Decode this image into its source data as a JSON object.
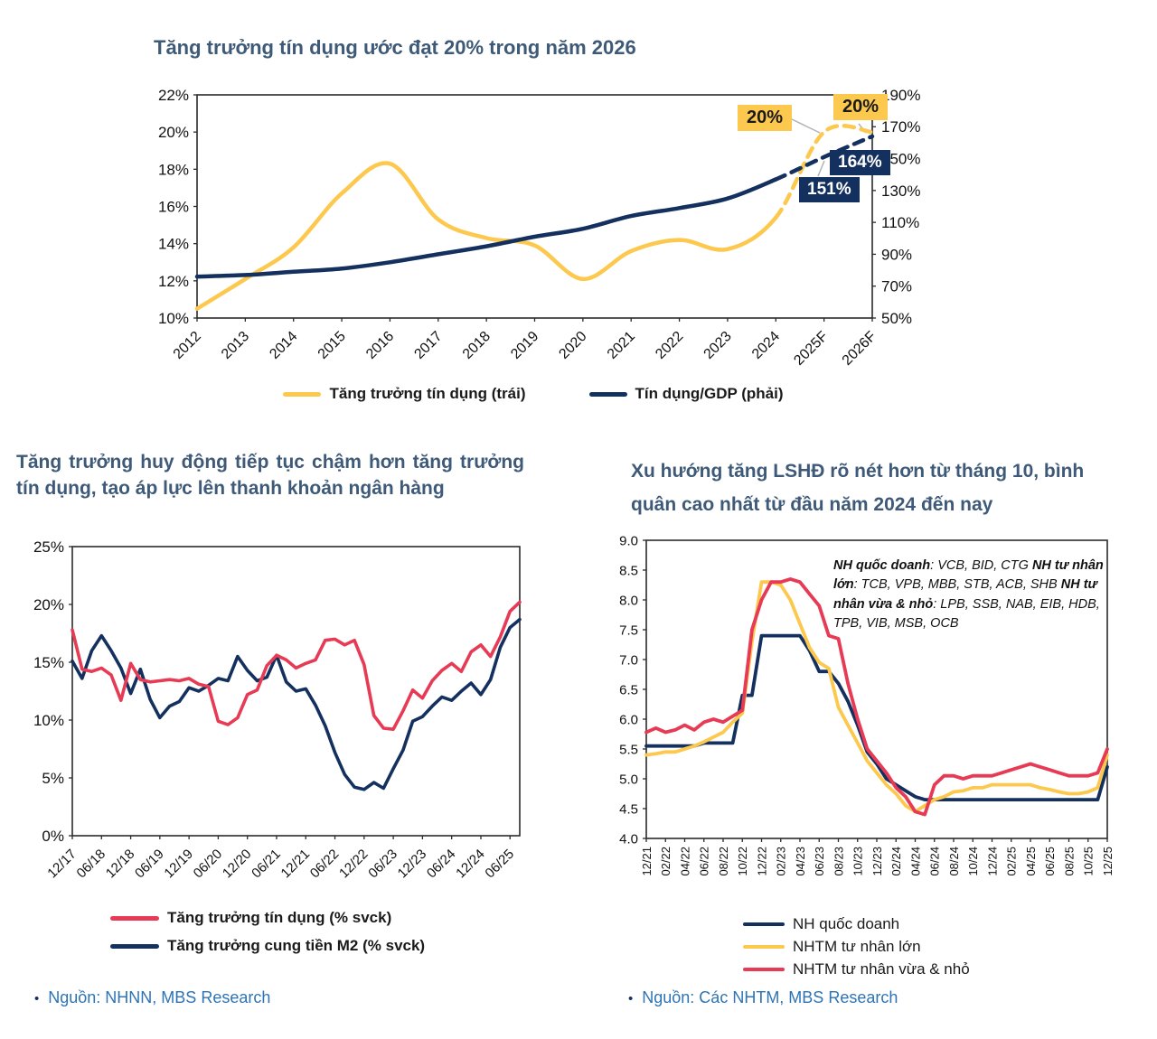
{
  "colors": {
    "navy": "#14305e",
    "yellow": "#fcc84d",
    "red": "#e73a55",
    "title_blue": "#3e5a78",
    "source_blue": "#2e74b5",
    "connector_grey": "#b3b3b3",
    "frame": "#2b2b2b"
  },
  "sources": {
    "bullet": "•",
    "left": "Nguồn: NHNN, MBS Research",
    "right": "Nguồn: Các NHTM, MBS Research"
  },
  "chart_data": [
    {
      "type": "line",
      "title": "Tăng trưởng tín dụng ước đạt 20% trong năm 2026",
      "smooth": true,
      "x_count": 15,
      "x_step": 1,
      "x_rot": 45,
      "x_labels": [
        "2012",
        "2013",
        "2014",
        "2015",
        "2016",
        "2017",
        "2018",
        "2019",
        "2020",
        "2021",
        "2022",
        "2023",
        "2024",
        "2025F",
        "2026F"
      ],
      "x_label_pos": [
        0,
        1,
        2,
        3,
        4,
        5,
        6,
        7,
        8,
        9,
        10,
        11,
        12,
        13,
        14
      ],
      "y_axis": {
        "min": 10,
        "max": 22,
        "ticks": [
          22,
          20,
          18,
          16,
          14,
          12,
          10
        ],
        "suffix": "%",
        "decimals": 0
      },
      "y2_axis": {
        "min": 50,
        "max": 190,
        "ticks": [
          190,
          170,
          150,
          130,
          110,
          90,
          70,
          50
        ],
        "suffix": "%",
        "decimals": 0
      },
      "legend_position": "bottom-center",
      "draw_order": [
        0,
        1
      ],
      "series": [
        {
          "name": "Tăng trưởng tín dụng (trái)",
          "color": "#fcc84d",
          "axis": "y",
          "width": 4.5,
          "dash_from": 12,
          "values": [
            10.5,
            12.1,
            13.8,
            16.7,
            18.3,
            15.3,
            14.3,
            13.9,
            12.1,
            13.6,
            14.2,
            13.7,
            15.4,
            20,
            20
          ]
        },
        {
          "name": "Tín dụng/GDP (phải)",
          "color": "#14305e",
          "axis": "y2",
          "width": 4.5,
          "dash_from": 12,
          "values": [
            76,
            77,
            79,
            81,
            85,
            90,
            95,
            101,
            106,
            114,
            119,
            125,
            137,
            151,
            164
          ]
        }
      ],
      "annotations": [
        {
          "text": "20%",
          "target": "Tăng trưởng tín dụng 2025F",
          "style": "yellow"
        },
        {
          "text": "20%",
          "target": "Tăng trưởng tín dụng 2026F",
          "style": "yellow"
        },
        {
          "text": "164%",
          "target": "Tín dụng/GDP 2026F",
          "style": "navy"
        },
        {
          "text": "151%",
          "target": "Tín dụng/GDP 2025F",
          "style": "navy"
        }
      ]
    },
    {
      "type": "line",
      "title": "Tăng trưởng huy động tiếp tục chậm hơn tăng trưởng tín dụng, tạo áp lực lên thanh khoản ngân hàng",
      "smooth": false,
      "x_count": 93,
      "x_step": 2,
      "x_rot": 45,
      "x_labels": [
        "12/17",
        "06/18",
        "12/18",
        "06/19",
        "12/19",
        "06/20",
        "12/20",
        "06/21",
        "12/21",
        "06/22",
        "12/22",
        "06/23",
        "12/23",
        "06/24",
        "12/24",
        "06/25"
      ],
      "x_label_pos": [
        0,
        6,
        12,
        18,
        24,
        30,
        36,
        42,
        48,
        54,
        60,
        66,
        72,
        78,
        84,
        90
      ],
      "y_axis": {
        "min": 0,
        "max": 25,
        "ticks": [
          25,
          20,
          15,
          10,
          5,
          0
        ],
        "suffix": "%",
        "decimals": 0
      },
      "legend_position": "bottom-left",
      "draw_order": [
        1,
        0
      ],
      "series": [
        {
          "name": "Tăng trưởng tín dụng (% svck)",
          "color": "#e73a55",
          "axis": "y",
          "width": 3.6,
          "dash_from": null,
          "values": [
            17.8,
            14.4,
            14.2,
            14.5,
            13.9,
            11.7,
            14.9,
            13.5,
            13.3,
            13.4,
            13.5,
            13.4,
            13.6,
            13.1,
            12.9,
            9.9,
            9.6,
            10.2,
            12.2,
            12.6,
            14.7,
            15.6,
            15.2,
            14.5,
            14.9,
            15.2,
            16.9,
            17.0,
            16.5,
            16.9,
            14.8,
            10.4,
            9.3,
            9.2,
            10.8,
            12.6,
            11.9,
            13.4,
            14.3,
            14.9,
            14.2,
            15.9,
            16.5,
            15.5,
            17.2,
            19.4,
            20.2
          ]
        },
        {
          "name": "Tăng trưởng cung tiền M2 (% svck)",
          "color": "#14305e",
          "axis": "y",
          "width": 3.6,
          "dash_from": null,
          "values": [
            15.1,
            13.6,
            16.0,
            17.3,
            16.0,
            14.5,
            12.3,
            14.4,
            11.8,
            10.2,
            11.2,
            11.6,
            12.8,
            12.5,
            13.0,
            13.6,
            13.4,
            15.5,
            14.3,
            13.4,
            13.7,
            15.6,
            13.3,
            12.5,
            12.7,
            11.3,
            9.5,
            7.2,
            5.3,
            4.2,
            4.0,
            4.6,
            4.1,
            5.8,
            7.4,
            9.9,
            10.3,
            11.2,
            12.0,
            11.7,
            12.5,
            13.2,
            12.2,
            13.5,
            16.3,
            18.0,
            18.7
          ]
        }
      ]
    },
    {
      "type": "line",
      "title": "Xu hướng tăng LSHĐ rõ nét hơn từ tháng 10, bình quân cao nhất từ đầu năm 2024 đến nay",
      "smooth": false,
      "x_count": 49,
      "x_step": 1,
      "x_rot": 90,
      "x_labels": [
        "12/21",
        "02/22",
        "04/22",
        "06/22",
        "08/22",
        "10/22",
        "12/22",
        "02/23",
        "04/23",
        "06/23",
        "08/23",
        "10/23",
        "12/23",
        "02/24",
        "04/24",
        "06/24",
        "08/24",
        "10/24",
        "12/24",
        "02/25",
        "04/25",
        "06/25",
        "08/25",
        "10/25",
        "12/25"
      ],
      "x_label_pos": [
        0,
        2,
        4,
        6,
        8,
        10,
        12,
        14,
        16,
        18,
        20,
        22,
        24,
        26,
        28,
        30,
        32,
        34,
        36,
        38,
        40,
        42,
        44,
        46,
        48
      ],
      "y_axis": {
        "min": 4.0,
        "max": 9.0,
        "ticks": [
          9.0,
          8.5,
          8.0,
          7.5,
          7.0,
          6.5,
          6.0,
          5.5,
          5.0,
          4.5,
          4.0
        ],
        "suffix": "",
        "decimals": 1
      },
      "legend_position": "bottom-center",
      "draw_order": [
        0,
        1,
        2
      ],
      "series": [
        {
          "name": "NH quốc doanh",
          "color": "#14305e",
          "axis": "y",
          "width": 3.8,
          "dash_from": null,
          "values": [
            5.55,
            5.55,
            5.55,
            5.55,
            5.55,
            5.55,
            5.6,
            5.6,
            5.6,
            5.6,
            6.4,
            6.4,
            7.4,
            7.4,
            7.4,
            7.4,
            7.4,
            7.15,
            6.8,
            6.8,
            6.6,
            6.3,
            5.9,
            5.45,
            5.25,
            5.0,
            4.9,
            4.8,
            4.7,
            4.65,
            4.65,
            4.65,
            4.65,
            4.65,
            4.65,
            4.65,
            4.65,
            4.65,
            4.65,
            4.65,
            4.65,
            4.65,
            4.65,
            4.65,
            4.65,
            4.65,
            4.65,
            4.65,
            5.2
          ]
        },
        {
          "name": "NHTM tư nhân lớn",
          "color": "#fcc84d",
          "axis": "y",
          "width": 3.8,
          "dash_from": null,
          "values": [
            5.4,
            5.42,
            5.45,
            5.45,
            5.5,
            5.55,
            5.62,
            5.7,
            5.78,
            5.95,
            6.1,
            7.3,
            8.3,
            8.3,
            8.25,
            8.0,
            7.6,
            7.2,
            6.95,
            6.85,
            6.2,
            5.9,
            5.6,
            5.3,
            5.1,
            4.9,
            4.75,
            4.55,
            4.45,
            4.55,
            4.65,
            4.7,
            4.78,
            4.8,
            4.85,
            4.85,
            4.9,
            4.9,
            4.9,
            4.9,
            4.9,
            4.85,
            4.82,
            4.78,
            4.75,
            4.75,
            4.78,
            4.85,
            5.4
          ]
        },
        {
          "name": "NHTM tư nhân vừa & nhỏ",
          "color": "#e73a55",
          "axis": "y",
          "width": 3.8,
          "dash_from": null,
          "values": [
            5.78,
            5.85,
            5.78,
            5.82,
            5.9,
            5.82,
            5.95,
            6.0,
            5.95,
            6.05,
            6.15,
            7.5,
            8.0,
            8.3,
            8.3,
            8.35,
            8.3,
            8.1,
            7.9,
            7.4,
            7.35,
            6.6,
            6.0,
            5.5,
            5.3,
            5.1,
            4.85,
            4.7,
            4.45,
            4.4,
            4.9,
            5.05,
            5.05,
            5.0,
            5.05,
            5.05,
            5.05,
            5.1,
            5.15,
            5.2,
            5.25,
            5.2,
            5.15,
            5.1,
            5.05,
            5.05,
            5.05,
            5.1,
            5.5
          ]
        }
      ],
      "bank_groups": [
        {
          "label": "NH quốc doanh",
          "rest": ": VCB, BID, CTG"
        },
        {
          "label": "NH tư nhân lớn",
          "rest": ": TCB, VPB, MBB, STB, ACB, SHB"
        },
        {
          "label": "NH tư nhân vừa & nhỏ",
          "rest": ": LPB, SSB, NAB, EIB, HDB, TPB, VIB, MSB, OCB"
        }
      ]
    }
  ]
}
